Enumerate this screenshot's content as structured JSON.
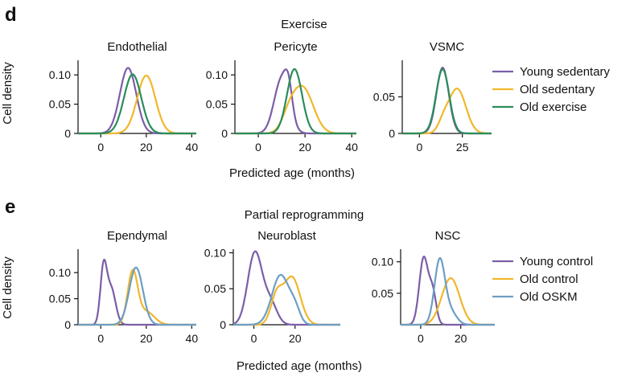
{
  "colors": {
    "purple": "#7b5ea7",
    "yellow": "#f1b72b",
    "green": "#2a8c5b",
    "blue": "#6c9ec4"
  },
  "panel_d": {
    "letter": "d",
    "title": "Exercise",
    "xlabel": "Predicted age (months)",
    "ylabel": "Cell density",
    "legend": [
      "Young sedentary",
      "Old sedentary",
      "Old exercise"
    ]
  },
  "panel_e": {
    "letter": "e",
    "title": "Partial reprogramming",
    "xlabel": "Predicted age (months)",
    "ylabel": "Cell density",
    "legend": [
      "Young control",
      "Old control",
      "Old OSKM"
    ]
  },
  "chart_data": [
    {
      "type": "line",
      "title": "Endothelial",
      "panel": "d",
      "xlim": [
        -10,
        42
      ],
      "ylim": [
        0,
        0.125
      ],
      "xticks": [
        0,
        20,
        40
      ],
      "yticks": [
        0,
        0.05,
        0.1
      ],
      "ytick_labels": [
        "0",
        "0.05",
        "0.10"
      ],
      "series": [
        {
          "name": "Young sedentary",
          "color_key": "purple",
          "components": [
            {
              "mu": 12,
              "sigma": 3.6,
              "amp": 0.112
            }
          ]
        },
        {
          "name": "Old sedentary",
          "color_key": "yellow",
          "components": [
            {
              "mu": 20,
              "sigma": 4.0,
              "amp": 0.099
            }
          ]
        },
        {
          "name": "Old exercise",
          "color_key": "green",
          "components": [
            {
              "mu": 14,
              "sigma": 3.8,
              "amp": 0.101
            }
          ]
        }
      ]
    },
    {
      "type": "line",
      "title": "Pericyte",
      "panel": "d",
      "xlim": [
        -10,
        42
      ],
      "ylim": [
        0,
        0.125
      ],
      "xticks": [
        0,
        20,
        40
      ],
      "yticks": [
        0,
        0.05,
        0.1
      ],
      "ytick_labels": [
        "0",
        "0.05",
        "0.10"
      ],
      "series": [
        {
          "name": "Young sedentary",
          "color_key": "purple",
          "components": [
            {
              "mu": 10,
              "sigma": 3.2,
              "amp": 0.093
            },
            {
              "mu": 13,
              "sigma": 1.6,
              "amp": 0.04
            }
          ]
        },
        {
          "name": "Old sedentary",
          "color_key": "yellow",
          "components": [
            {
              "mu": 19,
              "sigma": 4.5,
              "amp": 0.078
            },
            {
              "mu": 13,
              "sigma": 3.0,
              "amp": 0.022
            }
          ]
        },
        {
          "name": "Old exercise",
          "color_key": "green",
          "components": [
            {
              "mu": 15.5,
              "sigma": 3.2,
              "amp": 0.11
            }
          ]
        }
      ]
    },
    {
      "type": "line",
      "title": "VSMC",
      "panel": "d",
      "xlim": [
        -10,
        42
      ],
      "ylim": [
        0,
        0.1
      ],
      "xticks": [
        0,
        25
      ],
      "yticks": [
        0,
        0.05
      ],
      "ytick_labels": [
        "0",
        "0.05"
      ],
      "series": [
        {
          "name": "Young sedentary",
          "color_key": "purple",
          "components": [
            {
              "mu": 13.5,
              "sigma": 3.6,
              "amp": 0.09
            }
          ]
        },
        {
          "name": "Old sedentary",
          "color_key": "yellow",
          "components": [
            {
              "mu": 22,
              "sigma": 5.0,
              "amp": 0.061
            },
            {
              "mu": 14,
              "sigma": 3.0,
              "amp": 0.013
            }
          ]
        },
        {
          "name": "Old exercise",
          "color_key": "green",
          "components": [
            {
              "mu": 13.5,
              "sigma": 3.8,
              "amp": 0.088
            }
          ]
        }
      ]
    },
    {
      "type": "line",
      "title": "Ependymal",
      "panel": "e",
      "xlim": [
        -10,
        42
      ],
      "ylim": [
        0,
        0.145
      ],
      "xticks": [
        0,
        20,
        40
      ],
      "yticks": [
        0,
        0.05,
        0.1
      ],
      "ytick_labels": [
        "0",
        "0.05",
        "0.10"
      ],
      "series": [
        {
          "name": "Young control",
          "color_key": "purple",
          "components": [
            {
              "mu": 1.2,
              "sigma": 1.4,
              "amp": 0.105
            },
            {
              "mu": 4.5,
              "sigma": 2.0,
              "amp": 0.07
            }
          ]
        },
        {
          "name": "Old control",
          "color_key": "yellow",
          "components": [
            {
              "mu": 14,
              "sigma": 2.2,
              "amp": 0.1
            },
            {
              "mu": 20,
              "sigma": 3.5,
              "amp": 0.025
            }
          ]
        },
        {
          "name": "Old OSKM",
          "color_key": "blue",
          "components": [
            {
              "mu": 15.5,
              "sigma": 3.0,
              "amp": 0.11
            }
          ]
        }
      ]
    },
    {
      "type": "line",
      "title": "Neuroblast",
      "panel": "e",
      "xlim": [
        -10,
        42
      ],
      "ylim": [
        0,
        0.105
      ],
      "xticks": [
        0,
        20
      ],
      "yticks": [
        0,
        0.05,
        0.1
      ],
      "ytick_labels": [
        "0",
        "0.05",
        "0.10"
      ],
      "series": [
        {
          "name": "Young control",
          "color_key": "purple",
          "components": [
            {
              "mu": 0.5,
              "sigma": 3.5,
              "amp": 0.1
            },
            {
              "mu": 8,
              "sigma": 3.2,
              "amp": 0.03
            }
          ]
        },
        {
          "name": "Old control",
          "color_key": "yellow",
          "components": [
            {
              "mu": 11,
              "sigma": 2.8,
              "amp": 0.038
            },
            {
              "mu": 18.5,
              "sigma": 4.0,
              "amp": 0.066
            }
          ]
        },
        {
          "name": "Old OSKM",
          "color_key": "blue",
          "components": [
            {
              "mu": 13,
              "sigma": 4.2,
              "amp": 0.069
            },
            {
              "mu": 20,
              "sigma": 2.5,
              "amp": 0.018
            }
          ]
        }
      ]
    },
    {
      "type": "line",
      "title": "NSC",
      "panel": "e",
      "xlim": [
        -10,
        37
      ],
      "ylim": [
        0,
        0.12
      ],
      "xticks": [
        0,
        20
      ],
      "yticks": [
        0.05,
        0.1
      ],
      "ytick_labels": [
        "0.05",
        "0.10"
      ],
      "series": [
        {
          "name": "Young control",
          "color_key": "purple",
          "components": [
            {
              "mu": 1.5,
              "sigma": 2.2,
              "amp": 0.106
            },
            {
              "mu": 6,
              "sigma": 1.8,
              "amp": 0.05
            }
          ]
        },
        {
          "name": "Old control",
          "color_key": "yellow",
          "components": [
            {
              "mu": 15,
              "sigma": 4.5,
              "amp": 0.074
            }
          ]
        },
        {
          "name": "Old OSKM",
          "color_key": "blue",
          "components": [
            {
              "mu": 9.5,
              "sigma": 2.6,
              "amp": 0.102
            },
            {
              "mu": 15,
              "sigma": 3.0,
              "amp": 0.02
            }
          ]
        }
      ]
    }
  ]
}
